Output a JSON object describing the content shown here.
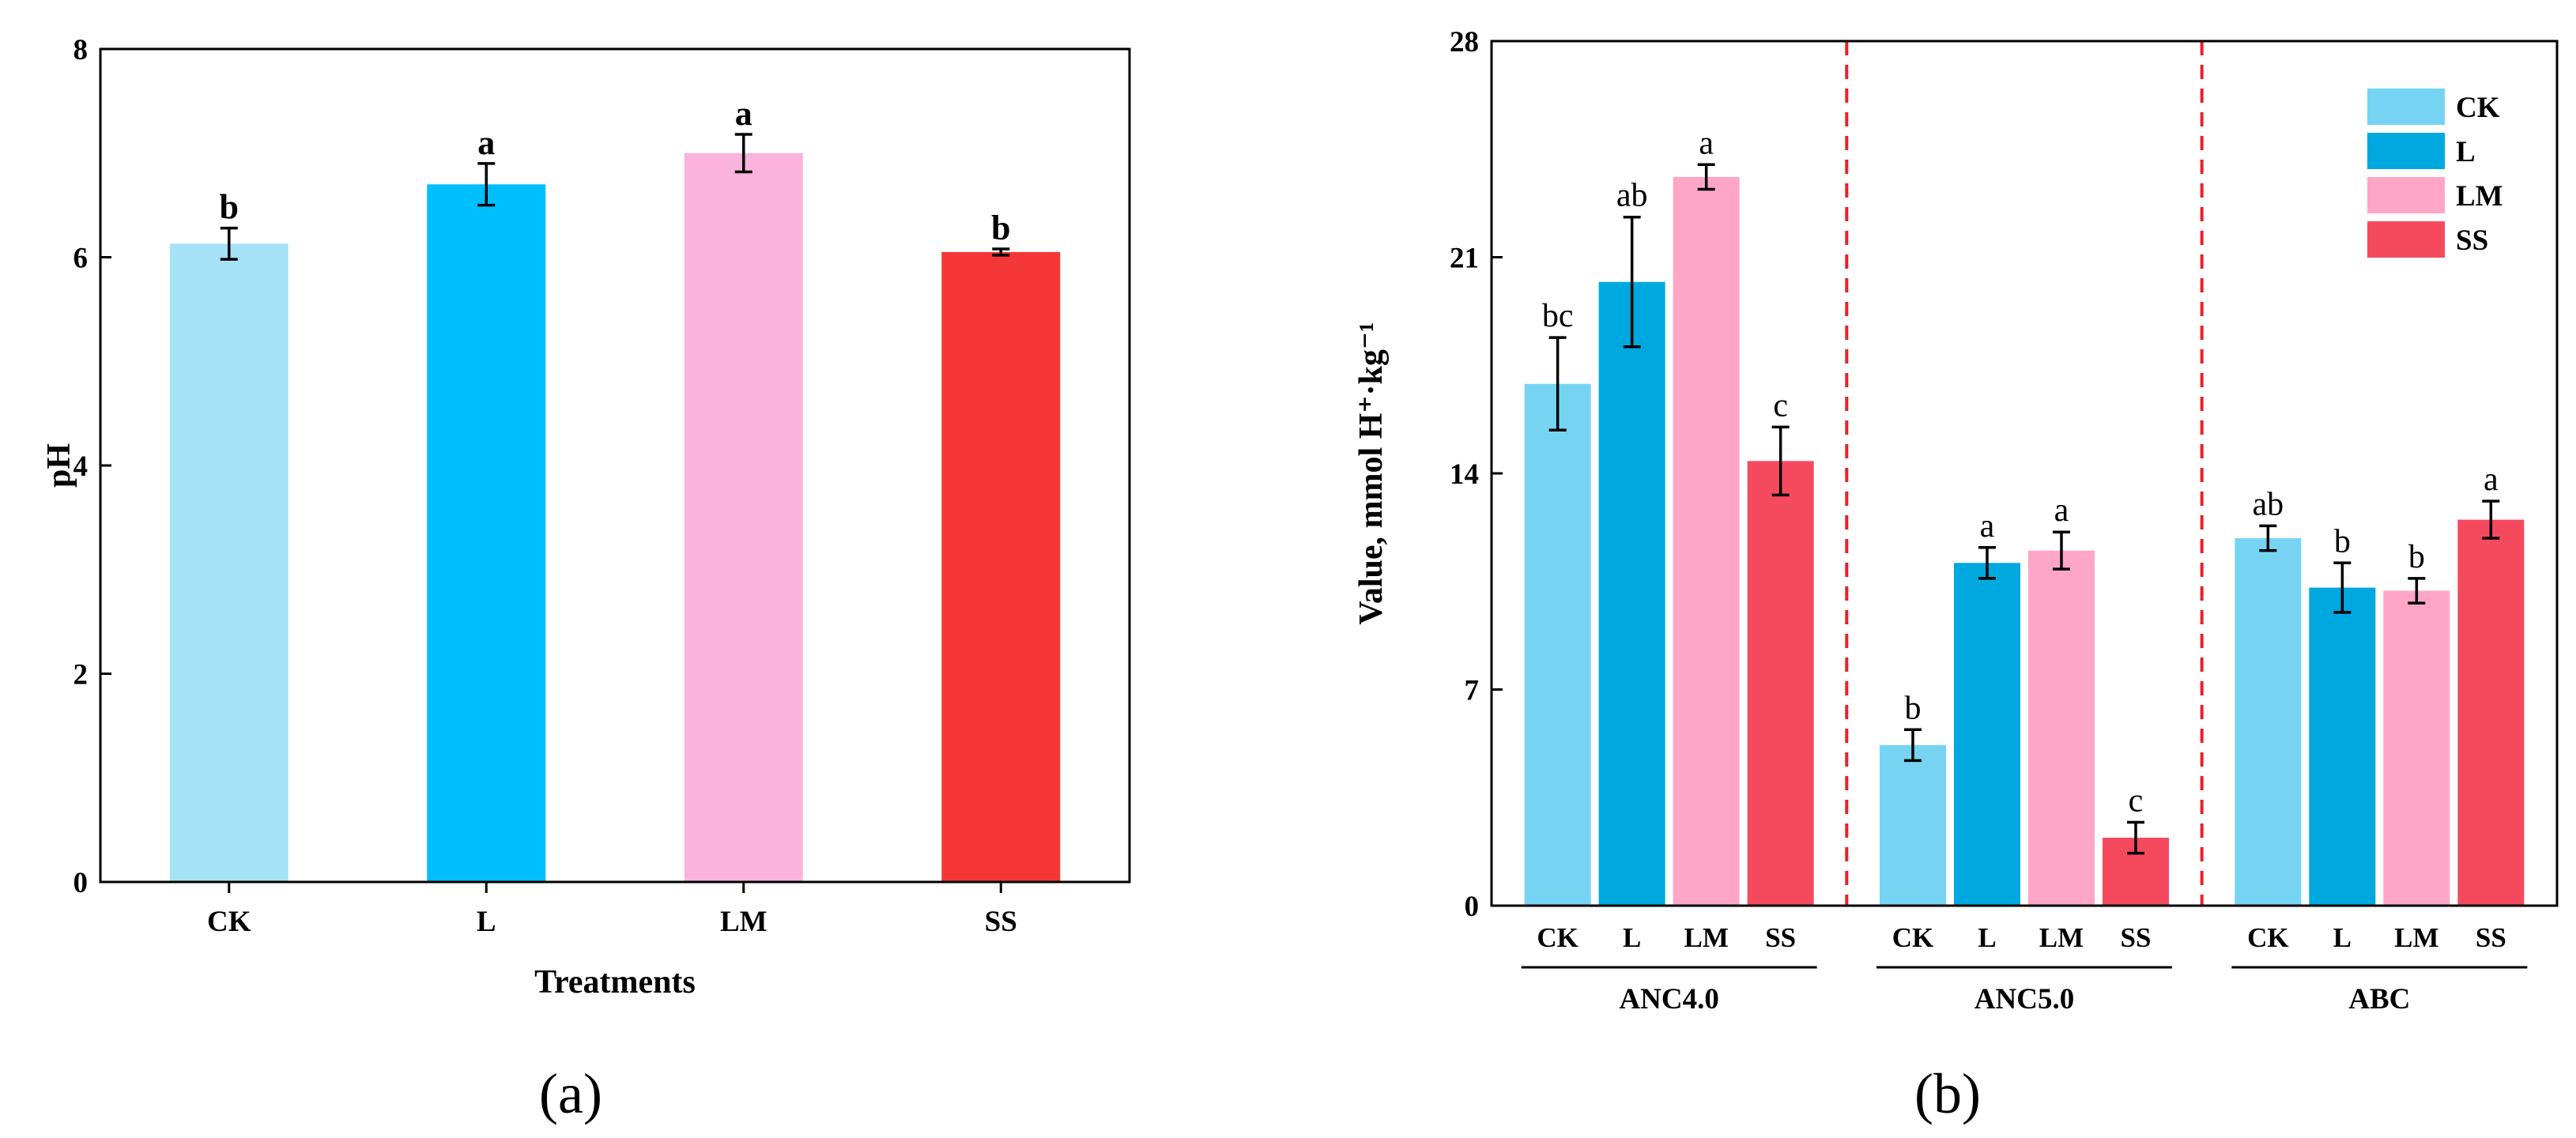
{
  "chart_data": [
    {
      "type": "bar",
      "panel_label": "(a)",
      "title": "",
      "xlabel": "Treatments",
      "ylabel": "pH",
      "ylim": [
        0,
        8
      ],
      "yticks": [
        "0",
        "2",
        "4",
        "6",
        "8"
      ],
      "categories": [
        "CK",
        "L",
        "LM",
        "SS"
      ],
      "values": [
        6.13,
        6.7,
        7.0,
        6.05
      ],
      "errors": [
        0.15,
        0.2,
        0.18,
        0.03
      ],
      "significance": [
        "b",
        "a",
        "a",
        "b"
      ],
      "colors": [
        "#a6e3f7",
        "#00bfff",
        "#f9b3dc",
        "#f53636"
      ]
    },
    {
      "type": "bar",
      "panel_label": "(b)",
      "title": "",
      "xlabel": "",
      "ylabel": "Value,  mmol H⁺·kg⁻¹",
      "ylim": [
        0,
        28
      ],
      "yticks": [
        "0",
        "7",
        "14",
        "21",
        "28"
      ],
      "groups": [
        "ANC4.0",
        "ANC5.0",
        "ABC"
      ],
      "categories": [
        "CK",
        "L",
        "LM",
        "SS"
      ],
      "legend": [
        {
          "label": "CK",
          "color": "#76d4f2"
        },
        {
          "label": "L",
          "color": "#00a8e0"
        },
        {
          "label": "LM",
          "color": "#ffa6c7"
        },
        {
          "label": "SS",
          "color": "#f54a5e"
        }
      ],
      "legend_position": "top-right",
      "series": [
        {
          "name": "ANC4.0",
          "values": [
            16.9,
            20.2,
            23.6,
            14.4
          ],
          "errors": [
            1.5,
            2.1,
            0.4,
            1.1
          ],
          "significance": [
            "bc",
            "ab",
            "a",
            "c"
          ]
        },
        {
          "name": "ANC5.0",
          "values": [
            5.2,
            11.1,
            11.5,
            2.2
          ],
          "errors": [
            0.5,
            0.5,
            0.6,
            0.5
          ],
          "significance": [
            "b",
            "a",
            "a",
            "c"
          ]
        },
        {
          "name": "ABC",
          "values": [
            11.9,
            10.3,
            10.2,
            12.5
          ],
          "errors": [
            0.4,
            0.8,
            0.4,
            0.6
          ],
          "significance": [
            "ab",
            "b",
            "b",
            "a"
          ]
        }
      ]
    }
  ]
}
